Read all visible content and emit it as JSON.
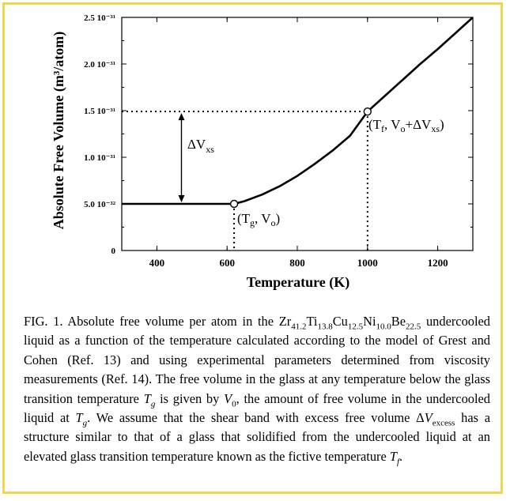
{
  "chart_data": {
    "type": "line",
    "xlabel": "Temperature (K)",
    "ylabel": "Absolute Free Volume (m³/atom)",
    "xlim": [
      300,
      1300
    ],
    "ylim": [
      0,
      2.5e-31
    ],
    "x_ticks": [
      400,
      600,
      800,
      1000,
      1200
    ],
    "x_tick_labels": [
      "400",
      "600",
      "800",
      "1000",
      "1200"
    ],
    "y_ticks": [
      0,
      5e-32,
      1e-31,
      1.5e-31,
      2e-31,
      2.5e-31
    ],
    "y_tick_labels": [
      "0",
      "5.0 10⁻³²",
      "1.0 10⁻³¹",
      "1.5 10⁻³¹",
      "2.0 10⁻³¹",
      "2.5 10⁻³¹"
    ],
    "series": [
      {
        "x": [
          300,
          400,
          500,
          620,
          650,
          700,
          750,
          800,
          850,
          900,
          950,
          1000,
          1050,
          1100,
          1150,
          1200,
          1250,
          1300
        ],
        "y": [
          5e-32,
          5e-32,
          5e-32,
          5e-32,
          5.3e-32,
          6e-32,
          6.9e-32,
          8e-32,
          9.3e-32,
          1.07e-31,
          1.23e-31,
          1.49e-31,
          1.66e-31,
          1.83e-31,
          2e-31,
          2.16e-31,
          2.33e-31,
          2.5e-31
        ]
      }
    ],
    "markers": [
      {
        "x": 620,
        "y": 5e-32
      },
      {
        "x": 1000,
        "y": 1.49e-31
      }
    ],
    "annotations": {
      "tg_label": "(T",
      "tg_sub": "g",
      "tg_rest": ", V",
      "tg_sub2": "o",
      "tg_close": ")",
      "tf_label": "(T",
      "tf_sub": "f",
      "tf_rest": ", V",
      "tf_sub2": "o",
      "tf_mid": "+ΔV",
      "tf_sub3": "xs",
      "tf_close": ")",
      "dv_label": "ΔV",
      "dv_sub": "xs"
    },
    "grid": false,
    "legend": "none"
  },
  "caption": {
    "p1": "FIG. 1. Absolute free volume per atom in the Zr",
    "s1": "41.2",
    "p2": "Ti",
    "s2": "13.8",
    "p3": "Cu",
    "s3": "12.5",
    "p4": "Ni",
    "s4": "10.0",
    "p5": "Be",
    "s5": "22.5",
    "p6": " undercooled liquid as a function of the temperature calculated according to the model of Grest and Cohen (Ref. 13) and using experimental parameters determined from viscosity measurements (Ref. 14). The free volume in the glass at any temperature below the glass transition temperature ",
    "v1": "T",
    "v1s": "g",
    "p7": " is given by ",
    "v2": "V",
    "v2s": "0",
    "p8": ", the amount of free volume in the undercooled liquid at ",
    "v3": "T",
    "v3s": "g",
    "p9": ". We assume that the shear band with excess free volume Δ",
    "v4": "V",
    "v4s": "excess",
    "p10": " has a structure similar to that of a glass that solidified from the undercooled liquid at an elevated glass transition temperature known as the fictive temperature ",
    "v5": "T",
    "v5s": "f",
    "p11": "."
  }
}
